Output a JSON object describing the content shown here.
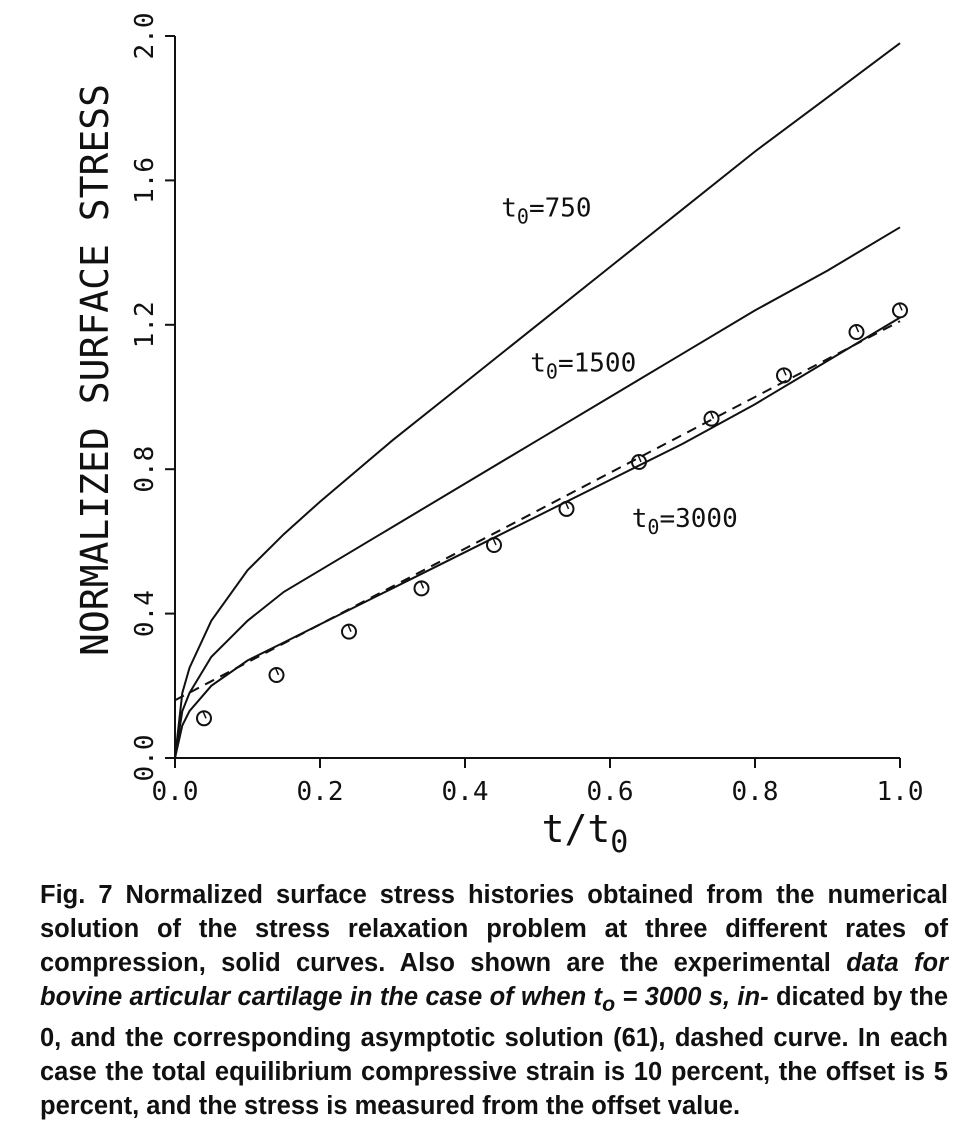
{
  "chart_data": {
    "type": "line",
    "xlabel": "t/t0",
    "xlabel_main": "t/t",
    "xlabel_sub": "0",
    "ylabel": "NORMALIZED SURFACE STRESS",
    "xlim": [
      0,
      1
    ],
    "ylim": [
      0,
      2
    ],
    "xticks": [
      "0.0",
      "0.2",
      "0.4",
      "0.6",
      "0.8",
      "1.0"
    ],
    "yticks": [
      "0.0",
      "0.4",
      "0.8",
      "1.2",
      "1.6",
      "2.0"
    ],
    "grid": false,
    "series": [
      {
        "name": "t0=750",
        "style": "solid",
        "x": [
          0,
          0.01,
          0.02,
          0.05,
          0.1,
          0.15,
          0.2,
          0.3,
          0.4,
          0.5,
          0.6,
          0.7,
          0.8,
          0.9,
          1.0
        ],
        "y": [
          0,
          0.18,
          0.25,
          0.38,
          0.52,
          0.62,
          0.71,
          0.88,
          1.04,
          1.2,
          1.36,
          1.52,
          1.68,
          1.83,
          1.98
        ]
      },
      {
        "name": "t0=1500",
        "style": "solid",
        "x": [
          0,
          0.01,
          0.02,
          0.05,
          0.1,
          0.15,
          0.2,
          0.3,
          0.4,
          0.5,
          0.6,
          0.7,
          0.8,
          0.9,
          1.0
        ],
        "y": [
          0,
          0.13,
          0.18,
          0.28,
          0.38,
          0.46,
          0.52,
          0.64,
          0.76,
          0.88,
          1.0,
          1.12,
          1.24,
          1.35,
          1.47
        ]
      },
      {
        "name": "t0=3000",
        "style": "solid",
        "x": [
          0,
          0.01,
          0.02,
          0.05,
          0.1,
          0.15,
          0.2,
          0.3,
          0.4,
          0.5,
          0.6,
          0.7,
          0.8,
          0.9,
          1.0
        ],
        "y": [
          0,
          0.09,
          0.13,
          0.2,
          0.27,
          0.32,
          0.37,
          0.47,
          0.57,
          0.67,
          0.77,
          0.87,
          0.98,
          1.1,
          1.22
        ]
      },
      {
        "name": "",
        "style": "dashed",
        "x": [
          0,
          0.1,
          0.2,
          0.4,
          0.6,
          0.8,
          1.0
        ],
        "y": [
          0.16,
          0.265,
          0.37,
          0.58,
          0.79,
          1.0,
          1.21
        ]
      },
      {
        "name": "",
        "style": "markers",
        "marker": "circle",
        "x": [
          0.04,
          0.14,
          0.24,
          0.34,
          0.44,
          0.54,
          0.64,
          0.74,
          0.84,
          0.94,
          1.0
        ],
        "y": [
          0.11,
          0.23,
          0.35,
          0.47,
          0.59,
          0.69,
          0.82,
          0.94,
          1.06,
          1.18,
          1.24
        ]
      }
    ],
    "annotations": [
      {
        "main": "t",
        "sub": "0",
        "text": "=750",
        "x": 0.45,
        "y": 1.5
      },
      {
        "main": "t",
        "sub": "0",
        "text": "=1500",
        "x": 0.49,
        "y": 1.07
      },
      {
        "main": "t",
        "sub": "0",
        "text": "=3000",
        "x": 0.63,
        "y": 0.64
      }
    ]
  },
  "caption": {
    "line1": "Fig. 7 Normalized surface stress histories obtained from the numerical solution of the stress relaxation problem at three different rates of compression, solid curves. Also shown are the experimental ",
    "italic": "data for bovine articular cartilage in the case of when t",
    "italic_sub": "o",
    "italic2": " = 3000 s, in-",
    "line2": "dicated by the 0, and the corresponding asymptotic solution (61), dashed curve. In each case the total equilibrium compressive strain is 10 percent, the offset is 5 percent, and the stress is measured from the offset value."
  }
}
